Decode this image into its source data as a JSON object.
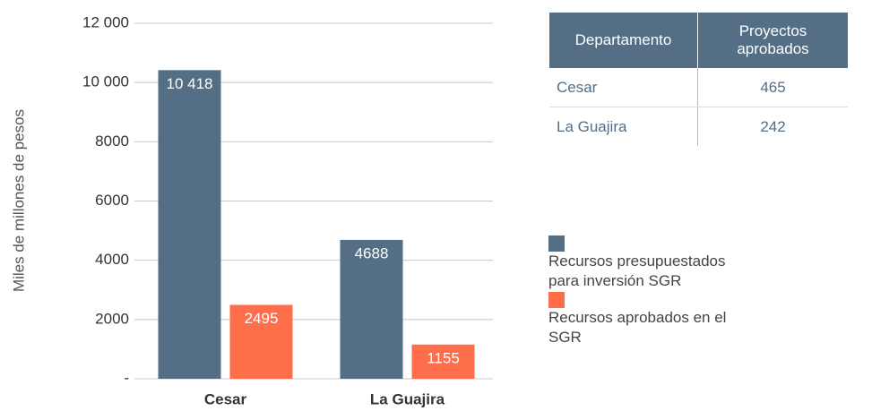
{
  "chart_data": {
    "type": "bar",
    "y_label": "Miles de millones de pesos",
    "categories": [
      "Cesar",
      "La Guajira"
    ],
    "series": [
      {
        "name": "Recursos presupuestados para inversión SGR",
        "color": "#546e85",
        "values": [
          10418,
          4688
        ],
        "value_labels": [
          "10 418",
          "4688"
        ]
      },
      {
        "name": "Recursos aprobados en el SGR",
        "color": "#ff6e4a",
        "values": [
          2495,
          1155
        ]
      }
    ],
    "ylim": [
      0,
      12000
    ],
    "yticks": [
      {
        "value": 0,
        "label": "-"
      },
      2000,
      4000,
      6000,
      8000,
      {
        "value": 10000,
        "label": "10 000"
      },
      {
        "value": 12000,
        "label": "12 000"
      }
    ],
    "grid": true
  },
  "table": {
    "header": [
      "Departamento",
      "Proyectos aprobados"
    ],
    "rows": [
      [
        "Cesar",
        "465"
      ],
      [
        "La Guajira",
        "242"
      ]
    ]
  }
}
